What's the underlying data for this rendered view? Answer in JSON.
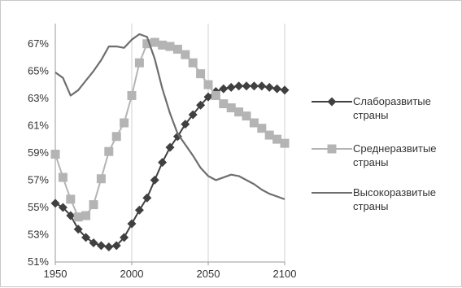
{
  "chart_data": {
    "type": "line",
    "title": "",
    "xlabel": "",
    "ylabel": "",
    "xlim": [
      1950,
      2100
    ],
    "ylim": [
      51,
      68
    ],
    "x_ticks": [
      1950,
      2000,
      2050,
      2100
    ],
    "x_tick_labels": [
      "1950",
      "2000",
      "2050",
      "2100"
    ],
    "y_ticks": [
      51,
      53,
      55,
      57,
      59,
      61,
      63,
      65,
      67
    ],
    "y_tick_labels": [
      "51%",
      "53%",
      "55%",
      "57%",
      "59%",
      "61%",
      "63%",
      "65%",
      "67%"
    ],
    "grid": "vertical",
    "legend_position": "right",
    "series": [
      {
        "name": "Слаборазвитые страны",
        "color": "#404040",
        "marker": "diamond",
        "x": [
          1950,
          1955,
          1960,
          1965,
          1970,
          1975,
          1980,
          1985,
          1990,
          1995,
          2000,
          2005,
          2010,
          2015,
          2020,
          2025,
          2030,
          2035,
          2040,
          2045,
          2050,
          2055,
          2060,
          2065,
          2070,
          2075,
          2080,
          2085,
          2090,
          2095,
          2100
        ],
        "values": [
          55.3,
          55.0,
          54.4,
          53.4,
          52.8,
          52.4,
          52.2,
          52.1,
          52.2,
          52.8,
          53.8,
          54.8,
          55.7,
          57.0,
          58.3,
          59.4,
          60.2,
          61.1,
          61.8,
          62.5,
          63.1,
          63.5,
          63.7,
          63.8,
          63.9,
          63.9,
          63.9,
          63.9,
          63.8,
          63.7,
          63.6
        ]
      },
      {
        "name": "Среднеразвитые страны",
        "color": "#b4b4b4",
        "marker": "square",
        "x": [
          1950,
          1955,
          1960,
          1965,
          1970,
          1975,
          1980,
          1985,
          1990,
          1995,
          2000,
          2005,
          2010,
          2015,
          2020,
          2025,
          2030,
          2035,
          2040,
          2045,
          2050,
          2055,
          2060,
          2065,
          2070,
          2075,
          2080,
          2085,
          2090,
          2095,
          2100
        ],
        "values": [
          58.9,
          57.2,
          55.6,
          54.3,
          54.4,
          55.2,
          57.1,
          59.1,
          60.2,
          61.2,
          63.2,
          65.6,
          67.0,
          67.1,
          66.9,
          66.8,
          66.6,
          66.2,
          65.6,
          64.8,
          64.0,
          63.2,
          62.6,
          62.3,
          62.0,
          61.7,
          61.2,
          60.8,
          60.3,
          60.0,
          59.7
        ]
      },
      {
        "name": "Высокоразвитые страны",
        "color": "#6e6e6e",
        "marker": "none",
        "x": [
          1950,
          1955,
          1960,
          1965,
          1970,
          1975,
          1980,
          1985,
          1990,
          1995,
          2000,
          2005,
          2010,
          2015,
          2020,
          2025,
          2030,
          2035,
          2040,
          2045,
          2050,
          2055,
          2060,
          2065,
          2070,
          2075,
          2080,
          2085,
          2090,
          2095,
          2100
        ],
        "values": [
          64.9,
          64.5,
          63.2,
          63.6,
          64.3,
          65.0,
          65.8,
          66.8,
          66.8,
          66.7,
          67.3,
          67.7,
          67.5,
          65.9,
          63.7,
          61.9,
          60.4,
          59.6,
          58.8,
          57.9,
          57.3,
          57.0,
          57.2,
          57.4,
          57.3,
          57.0,
          56.7,
          56.3,
          56.0,
          55.8,
          55.6
        ]
      }
    ]
  }
}
